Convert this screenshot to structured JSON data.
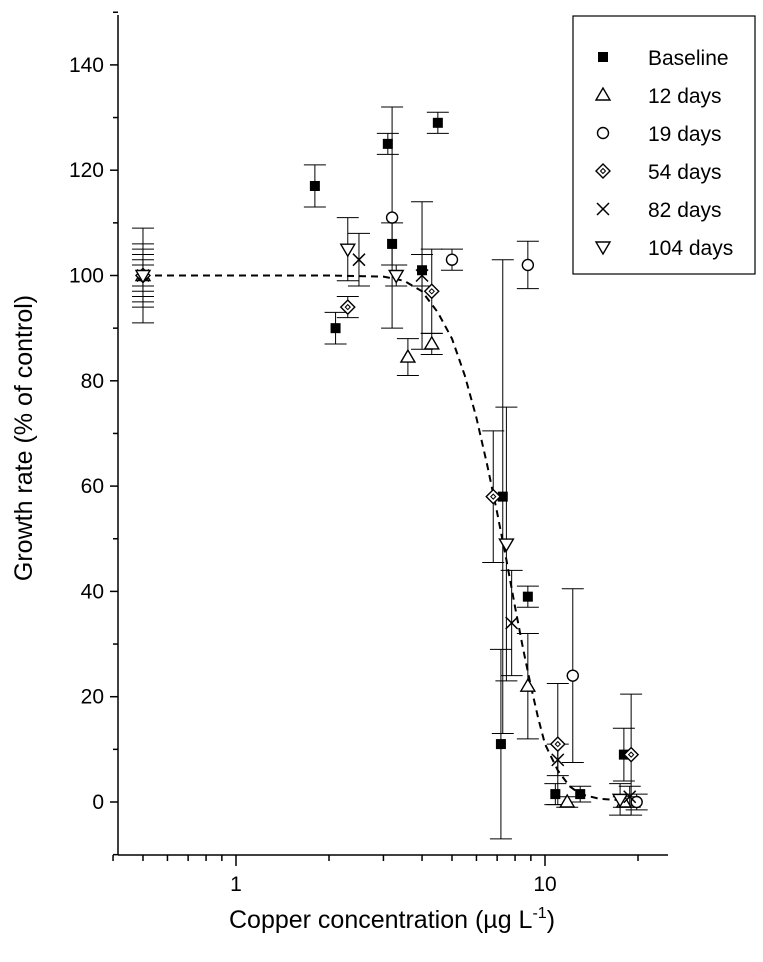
{
  "chart_data": {
    "type": "scatter",
    "title": "",
    "xlabel": "Copper concentration (µg L",
    "xlabel_superscript": "-1",
    "xlabel_suffix": ")",
    "ylabel": "Growth rate (% of control)",
    "xscale": "log",
    "xlim": [
      0.4,
      25
    ],
    "ylim": [
      -10,
      150
    ],
    "xticks": [
      1,
      10
    ],
    "xtick_labels": [
      "1",
      "10"
    ],
    "yticks": [
      0,
      20,
      40,
      60,
      80,
      100,
      120,
      140
    ],
    "ytick_labels": [
      "0",
      "20",
      "40",
      "60",
      "80",
      "100",
      "120",
      "140"
    ],
    "grid": false,
    "legend_position": "top-right",
    "series": [
      {
        "name": "Baseline",
        "marker": "filled-square",
        "points": [
          {
            "x": 0.5,
            "y": 100,
            "err": 9
          },
          {
            "x": 1.8,
            "y": 117,
            "err": 4
          },
          {
            "x": 2.1,
            "y": 90,
            "err": 3
          },
          {
            "x": 3.1,
            "y": 125,
            "err": 2
          },
          {
            "x": 3.2,
            "y": 106,
            "err": 4
          },
          {
            "x": 4.0,
            "y": 101,
            "err": 3
          },
          {
            "x": 4.5,
            "y": 129,
            "err": 2
          },
          {
            "x": 7.3,
            "y": 58,
            "err": 45
          },
          {
            "x": 7.2,
            "y": 11,
            "err": 18
          },
          {
            "x": 8.8,
            "y": 39,
            "err": 2
          },
          {
            "x": 10.8,
            "y": 1.5,
            "err": 2
          },
          {
            "x": 13.0,
            "y": 1.5,
            "err": 1.5
          },
          {
            "x": 18.0,
            "y": 9,
            "err": 5
          }
        ]
      },
      {
        "name": "12 days",
        "marker": "open-triangle-up",
        "points": [
          {
            "x": 0.5,
            "y": 100,
            "err": 6
          },
          {
            "x": 3.6,
            "y": 84.5,
            "err": 3.5
          },
          {
            "x": 4.3,
            "y": 87,
            "err": 2
          },
          {
            "x": 8.8,
            "y": 22,
            "err": 10
          },
          {
            "x": 11.8,
            "y": 0,
            "err": 1
          },
          {
            "x": 18.0,
            "y": 0,
            "err": 1
          }
        ]
      },
      {
        "name": "19 days",
        "marker": "open-circle",
        "points": [
          {
            "x": 0.5,
            "y": 100,
            "err": 5
          },
          {
            "x": 3.2,
            "y": 111,
            "err": 21
          },
          {
            "x": 5.0,
            "y": 103,
            "err": 2
          },
          {
            "x": 8.8,
            "y": 102,
            "err": 4.5
          },
          {
            "x": 12.3,
            "y": 24,
            "err": 16.5
          },
          {
            "x": 19.8,
            "y": 0,
            "err": 1.5
          }
        ]
      },
      {
        "name": "54 days",
        "marker": "open-diamond",
        "points": [
          {
            "x": 0.5,
            "y": 100,
            "err": 4
          },
          {
            "x": 2.3,
            "y": 94,
            "err": 2
          },
          {
            "x": 4.3,
            "y": 97,
            "err": 8
          },
          {
            "x": 6.8,
            "y": 58,
            "err": 12.5
          },
          {
            "x": 11.0,
            "y": 11,
            "err": 11.5
          },
          {
            "x": 19.0,
            "y": 9,
            "err": 11.5
          }
        ]
      },
      {
        "name": "82 days",
        "marker": "cross",
        "points": [
          {
            "x": 0.5,
            "y": 100,
            "err": 3
          },
          {
            "x": 2.5,
            "y": 103,
            "err": 5
          },
          {
            "x": 4.0,
            "y": 100,
            "err": 14
          },
          {
            "x": 7.8,
            "y": 34,
            "err": 10
          },
          {
            "x": 11.0,
            "y": 8,
            "err": 3
          },
          {
            "x": 18.8,
            "y": 1,
            "err": 2
          }
        ]
      },
      {
        "name": "104 days",
        "marker": "open-triangle-down",
        "points": [
          {
            "x": 0.5,
            "y": 100,
            "err": 2
          },
          {
            "x": 2.3,
            "y": 105,
            "err": 6
          },
          {
            "x": 3.3,
            "y": 100,
            "err": 2
          },
          {
            "x": 7.5,
            "y": 49,
            "err": 26
          },
          {
            "x": 17.5,
            "y": 0.5,
            "err": 3
          }
        ]
      }
    ],
    "fit_curve": {
      "style": "dashed",
      "points": [
        [
          0.5,
          100
        ],
        [
          1.0,
          100
        ],
        [
          2.0,
          100
        ],
        [
          3.0,
          99.8
        ],
        [
          3.5,
          99
        ],
        [
          4.0,
          97
        ],
        [
          4.5,
          93
        ],
        [
          5.0,
          88
        ],
        [
          5.5,
          81
        ],
        [
          6.0,
          73
        ],
        [
          6.5,
          64
        ],
        [
          7.0,
          55
        ],
        [
          7.5,
          46
        ],
        [
          8.0,
          37
        ],
        [
          8.5,
          29
        ],
        [
          9.0,
          22
        ],
        [
          9.5,
          16
        ],
        [
          10.0,
          11
        ],
        [
          11.0,
          6
        ],
        [
          12.0,
          3
        ],
        [
          13.0,
          1.5
        ],
        [
          15.0,
          0.6
        ],
        [
          18.0,
          0.3
        ]
      ]
    }
  }
}
